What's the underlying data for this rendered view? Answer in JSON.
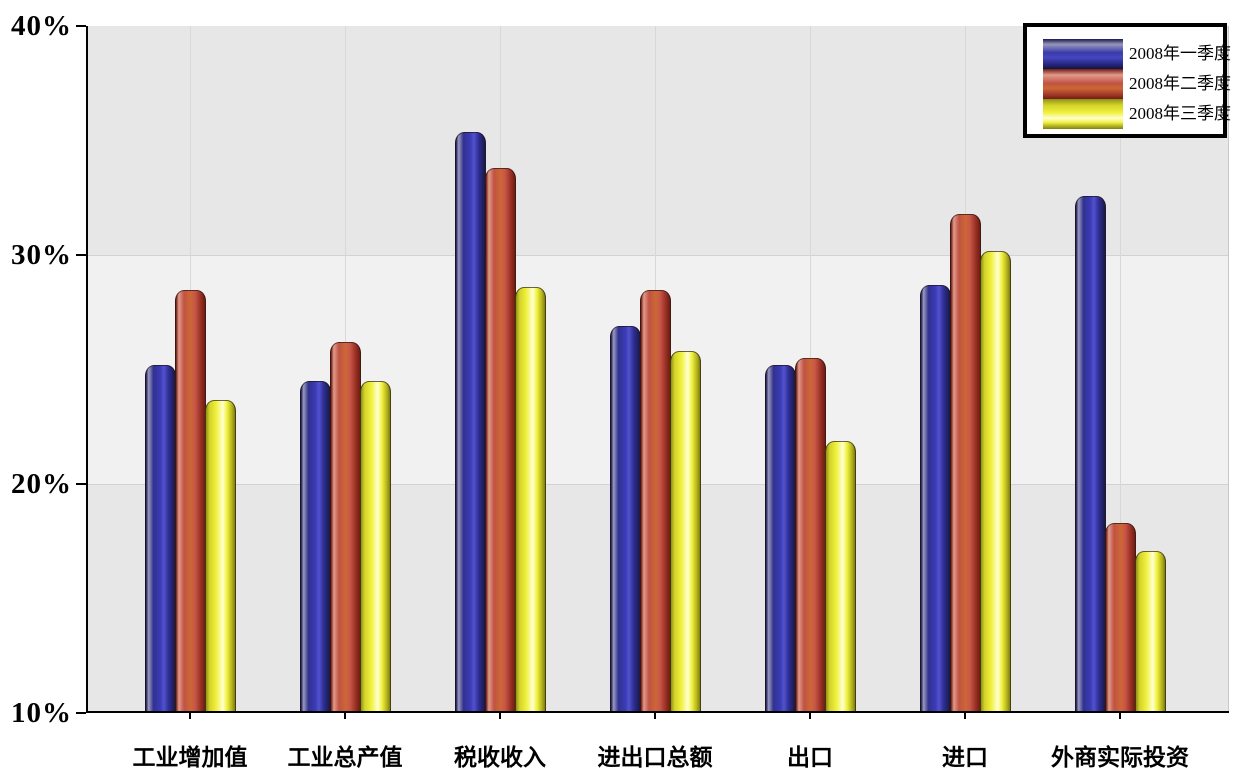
{
  "chart_data": {
    "type": "bar",
    "title": "",
    "categories": [
      "工业增加值",
      "工业总产值",
      "税收收入",
      "进出口总额",
      "出口",
      "进口",
      "外商实际投资"
    ],
    "series": [
      {
        "name": "2008年一季度",
        "color": "#3c3cb6",
        "values": [
          25.1,
          24.4,
          35.3,
          26.8,
          25.1,
          28.6,
          32.5
        ]
      },
      {
        "name": "2008年二季度",
        "color": "#c0524a",
        "values": [
          28.4,
          26.1,
          33.7,
          28.4,
          25.4,
          31.7,
          18.2
        ]
      },
      {
        "name": "2008年三季度",
        "color": "#f0f03c",
        "values": [
          23.6,
          24.4,
          28.5,
          25.7,
          21.8,
          30.1,
          17.0
        ]
      }
    ],
    "xlabel": "",
    "ylabel": "",
    "y_ticks": [
      "10%",
      "20%",
      "30%",
      "40%"
    ],
    "ylim": [
      10,
      40
    ],
    "grid": "alternating gray horizontal bands every 10%; faint vertical gridline at each category center",
    "legend_position": "top-right"
  }
}
